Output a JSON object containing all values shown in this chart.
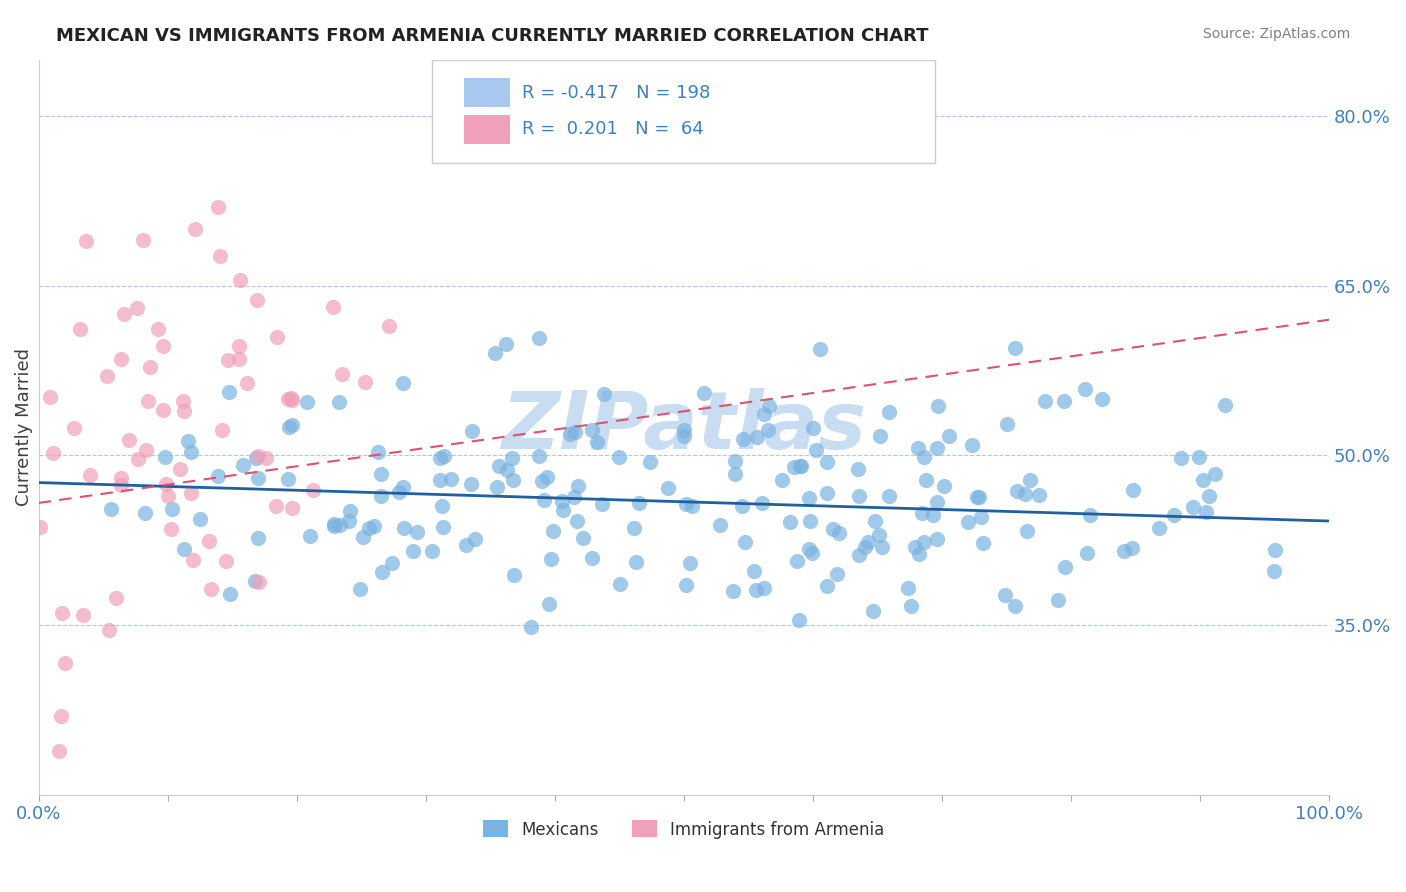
{
  "title": "MEXICAN VS IMMIGRANTS FROM ARMENIA CURRENTLY MARRIED CORRELATION CHART",
  "source_text": "Source: ZipAtlas.com",
  "xlabel": "",
  "ylabel": "Currently Married",
  "x_tick_labels": [
    "0.0%",
    "100.0%"
  ],
  "y_tick_labels_right": [
    "35.0%",
    "50.0%",
    "65.0%",
    "80.0%"
  ],
  "y_tick_vals_right": [
    0.35,
    0.5,
    0.65,
    0.8
  ],
  "legend_items": [
    {
      "label": "R = -0.417   N = 198",
      "color": "#a8c8f0"
    },
    {
      "label": "R =  0.201   N =  64",
      "color": "#f0a8c0"
    }
  ],
  "legend_label1": "Mexicans",
  "legend_label2": "Immigrants from Armenia",
  "scatter_color_mexican": "#7ab3e0",
  "scatter_color_armenia": "#f0a0b8",
  "trend_color_mexican": "#2060a0",
  "trend_color_armenia": "#e05070",
  "background_color": "#ffffff",
  "title_fontsize": 13,
  "watermark_text": "ZIPatlas",
  "watermark_color": "#c0d8f0",
  "xlim": [
    0.0,
    1.0
  ],
  "ylim": [
    0.2,
    0.85
  ],
  "mexican_R": -0.417,
  "mexican_N": 198,
  "armenia_R": 0.201,
  "armenia_N": 64,
  "mexican_trend_start_y": 0.476,
  "mexican_trend_end_y": 0.442,
  "armenia_trend_start_y": 0.458,
  "armenia_trend_end_y": 0.62
}
